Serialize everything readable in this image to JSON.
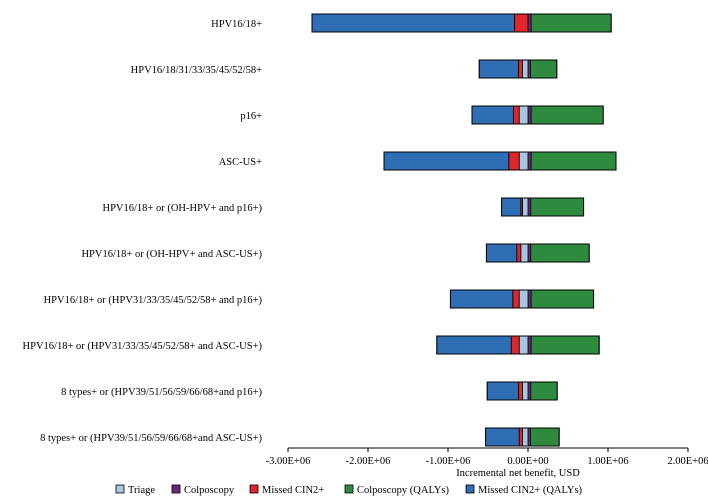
{
  "chart_data": {
    "type": "bar",
    "orientation": "horizontal-stacked",
    "title": "",
    "xlabel": "Incremental net benefit, USD",
    "ylabel": "",
    "xlim": [
      -3000000,
      2000000
    ],
    "xticks": [
      -3000000,
      -2000000,
      -1000000,
      0,
      1000000,
      2000000
    ],
    "xtick_labels": [
      "-3.00E+06",
      "-2.00E+06",
      "-1.00E+06",
      "0.00E+00",
      "1.00E+06",
      "2.00E+06"
    ],
    "grid": false,
    "legend_position": "bottom",
    "categories": [
      "HPV16/18+",
      "HPV16/18/31/33/35/45/52/58+",
      "p16+",
      "ASC-US+",
      "HPV16/18+ or (OH-HPV+ and p16+)",
      "HPV16/18+ or (OH-HPV+ and ASC-US+)",
      "HPV16/18+ or (HPV31/33/35/45/52/58+ and p16+)",
      "HPV16/18+ or (HPV31/33/35/45/52/58+ and ASC-US+)",
      "8 types+ or (HPV39/51/56/59/66/68+and p16+)",
      "8 types+ or (HPV39/51/56/59/66/68+and ASC-US+)"
    ],
    "series": [
      {
        "name": "Triage",
        "color": "#a8c6e0",
        "values": [
          0,
          -70000,
          -110000,
          -110000,
          -70000,
          -90000,
          -110000,
          -110000,
          -70000,
          -70000
        ]
      },
      {
        "name": "Colposcopy",
        "color": "#6a2b7e",
        "values": [
          40000,
          30000,
          40000,
          40000,
          35000,
          35000,
          40000,
          40000,
          35000,
          30000
        ]
      },
      {
        "name": "Missed CIN2+",
        "color": "#e0262b",
        "values": [
          -170000,
          -50000,
          -70000,
          -130000,
          -20000,
          -50000,
          -80000,
          -100000,
          -50000,
          -40000
        ]
      },
      {
        "name": "Colposcopy (QALYs)",
        "color": "#2e8b3e",
        "values": [
          1000000,
          330000,
          900000,
          1060000,
          660000,
          730000,
          780000,
          850000,
          330000,
          360000
        ]
      },
      {
        "name": "Missed CIN2+ (QALYs)",
        "color": "#2f6db4",
        "values": [
          -2530000,
          -490000,
          -520000,
          -1560000,
          -240000,
          -380000,
          -780000,
          -930000,
          -390000,
          -420000
        ]
      }
    ]
  }
}
